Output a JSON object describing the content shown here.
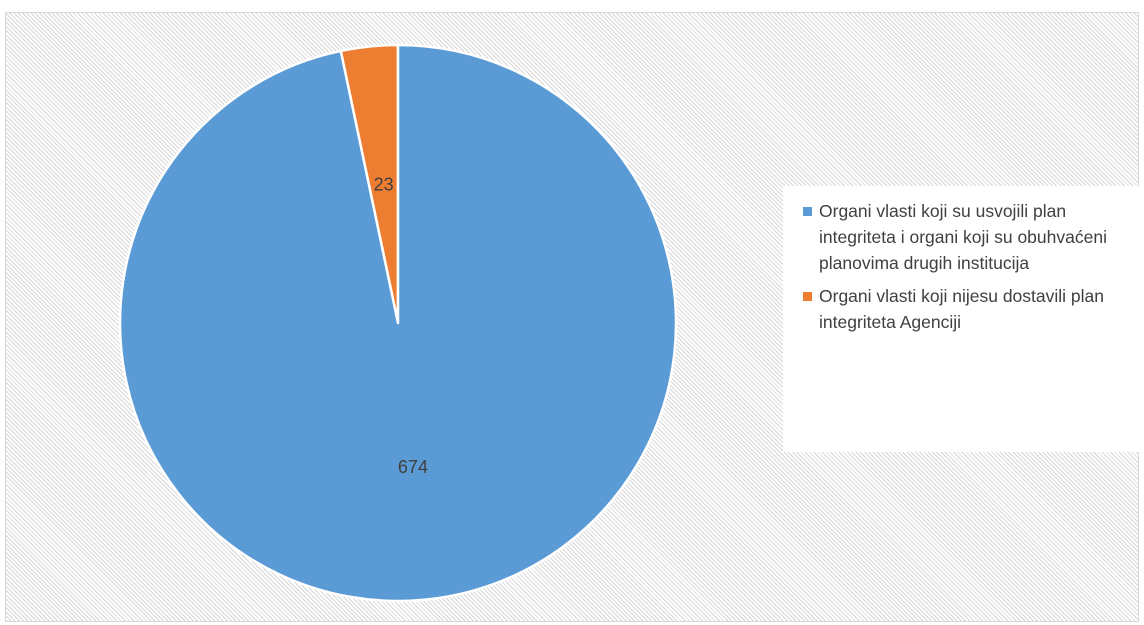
{
  "chart_data": {
    "type": "pie",
    "slices": [
      {
        "label": "Organi vlasti koji nijesu dostavili plan integriteta Agenciji",
        "value": 23,
        "color": "#ED7D31"
      },
      {
        "label": "Organi vlasti koji su usvojili plan integriteta i organi koji su obuhvaćeni planovima drugih institucija",
        "value": 674,
        "color": "#5B9BD5"
      }
    ],
    "legend": {
      "position": "right",
      "entries": [
        {
          "label": "Organi vlasti koji su usvojili plan integriteta i organi koji su obuhvaćeni planovima drugih institucija",
          "color": "#5B9BD5"
        },
        {
          "label": "Organi vlasti koji nijesu dostavili plan integriteta Agenciji",
          "color": "#ED7D31"
        }
      ]
    },
    "data_labels": [
      "23",
      "674"
    ],
    "title": ""
  }
}
